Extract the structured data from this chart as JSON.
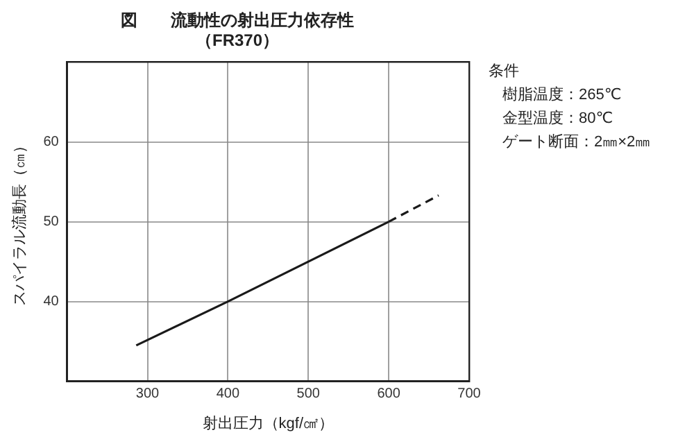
{
  "chart_data": {
    "type": "line",
    "title": "図　　流動性の射出圧力依存性",
    "subtitle": "（FR370）",
    "xlabel": "射出圧力（kgf/㎠）",
    "ylabel": "スパイラル流動長（㎝）",
    "annotations": [
      "条件",
      "樹脂温度：265℃",
      "金型温度：80℃",
      "ゲート断面：2㎜×2㎜"
    ],
    "series": [
      {
        "color": "#1a1a1a",
        "x": [
          286,
          400,
          600
        ],
        "values": [
          34.5,
          40,
          50
        ],
        "line_style": "solid"
      },
      {
        "color": "#1a1a1a",
        "x": [
          600,
          662
        ],
        "values": [
          50,
          53.3
        ],
        "line_style": "dashed"
      }
    ],
    "xlim": [
      200,
      700
    ],
    "xticks": [
      300,
      400,
      500,
      600,
      700
    ],
    "ylim": [
      30,
      70
    ],
    "yticks": [
      40,
      50,
      60
    ],
    "grid": true,
    "legend": false,
    "marker": "none"
  }
}
